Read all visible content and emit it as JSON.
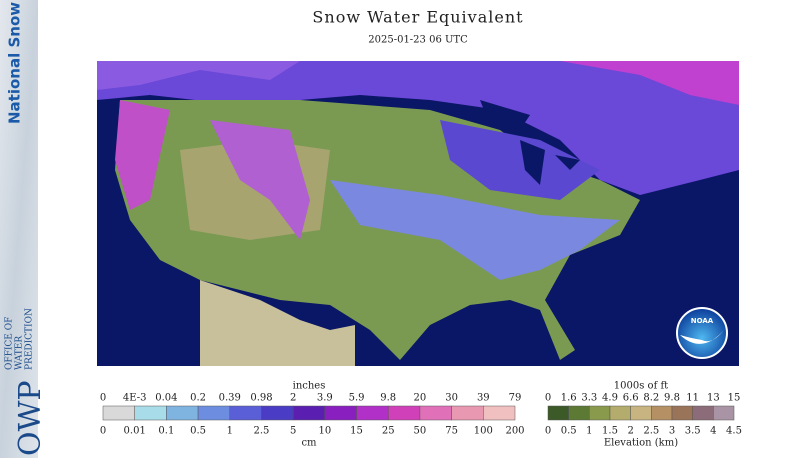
{
  "sidebar": {
    "title": "National Snow Analysis",
    "logo": "OWP",
    "org": [
      "OFFICE OF",
      "WATER",
      "PREDICTION"
    ]
  },
  "header": {
    "title": "Snow Water Equivalent",
    "subtitle": "2025-01-23 06 UTC"
  },
  "map": {
    "logo": "NOAA"
  },
  "legend_swe": {
    "unit_top": "inches",
    "labels_top": [
      "0",
      "4E-3",
      "0.04",
      "0.2",
      "0.39",
      "0.98",
      "2",
      "3.9",
      "5.9",
      "9.8",
      "20",
      "30",
      "39",
      "79"
    ],
    "labels_bottom": [
      "0",
      "0.01",
      "0.1",
      "0.5",
      "1",
      "2.5",
      "5",
      "10",
      "15",
      "25",
      "50",
      "75",
      "100",
      "200"
    ],
    "unit_bottom": "cm",
    "colors": [
      "#d9d9d9",
      "#a8dce8",
      "#7fb3e0",
      "#6d8ee0",
      "#5a5fd8",
      "#4a3cc4",
      "#5a1eb0",
      "#8a1fc0",
      "#b030c8",
      "#d040b8",
      "#e070b8",
      "#e898b0",
      "#f0c0c0"
    ]
  },
  "legend_elev": {
    "unit_top": "1000s of ft",
    "labels_top": [
      "0",
      "1.6",
      "3.3",
      "4.9",
      "6.6",
      "8.2",
      "9.8",
      "11",
      "13",
      "15"
    ],
    "labels_bottom": [
      "0",
      "0.5",
      "1",
      "1.5",
      "2",
      "2.5",
      "3",
      "3.5",
      "4",
      "4.5"
    ],
    "unit_bottom": "Elevation (km)",
    "colors": [
      "#3c5a28",
      "#5c7a34",
      "#8a9a4c",
      "#b4ac6c",
      "#c8b480",
      "#b49064",
      "#9a7458",
      "#8c6c78",
      "#a894a4"
    ]
  }
}
